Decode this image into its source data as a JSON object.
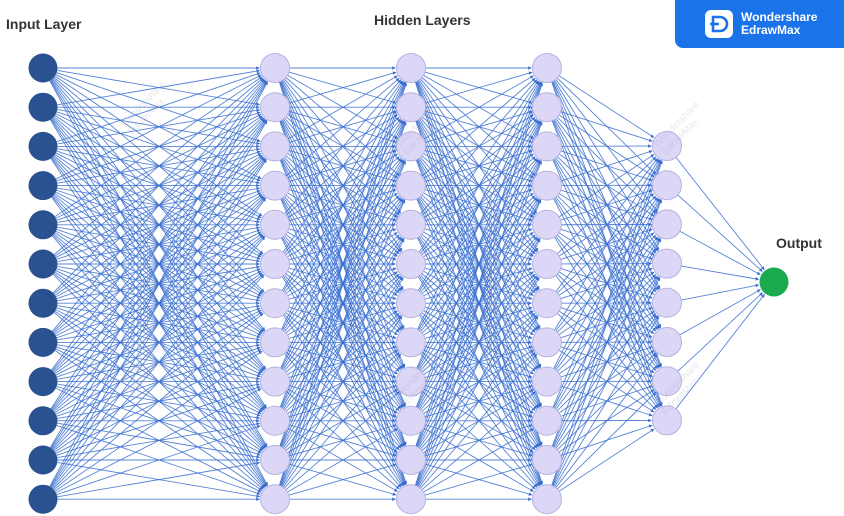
{
  "labels": {
    "input_layer": "Input Layer",
    "hidden_layers": "Hidden Layers",
    "output": "Output"
  },
  "badge": {
    "line1": "Wondershare",
    "line2": "EdrawMax"
  },
  "watermark": {
    "line1": "Wondershare",
    "line2": "EdrawMax"
  },
  "network": {
    "layers": [
      {
        "role": "input",
        "nodes": 12
      },
      {
        "role": "hidden",
        "nodes": 12
      },
      {
        "role": "hidden",
        "nodes": 12
      },
      {
        "role": "hidden",
        "nodes": 12
      },
      {
        "role": "hidden",
        "nodes": 8
      },
      {
        "role": "output",
        "nodes": 1
      }
    ]
  },
  "colors": {
    "input_node": "#2a5291",
    "hidden_node_fill": "#dcd6f7",
    "hidden_node_stroke": "#b6b2e0",
    "output_node": "#1aab4f",
    "edge": "#3a6fd0",
    "badge_bg": "#1a73e8"
  }
}
